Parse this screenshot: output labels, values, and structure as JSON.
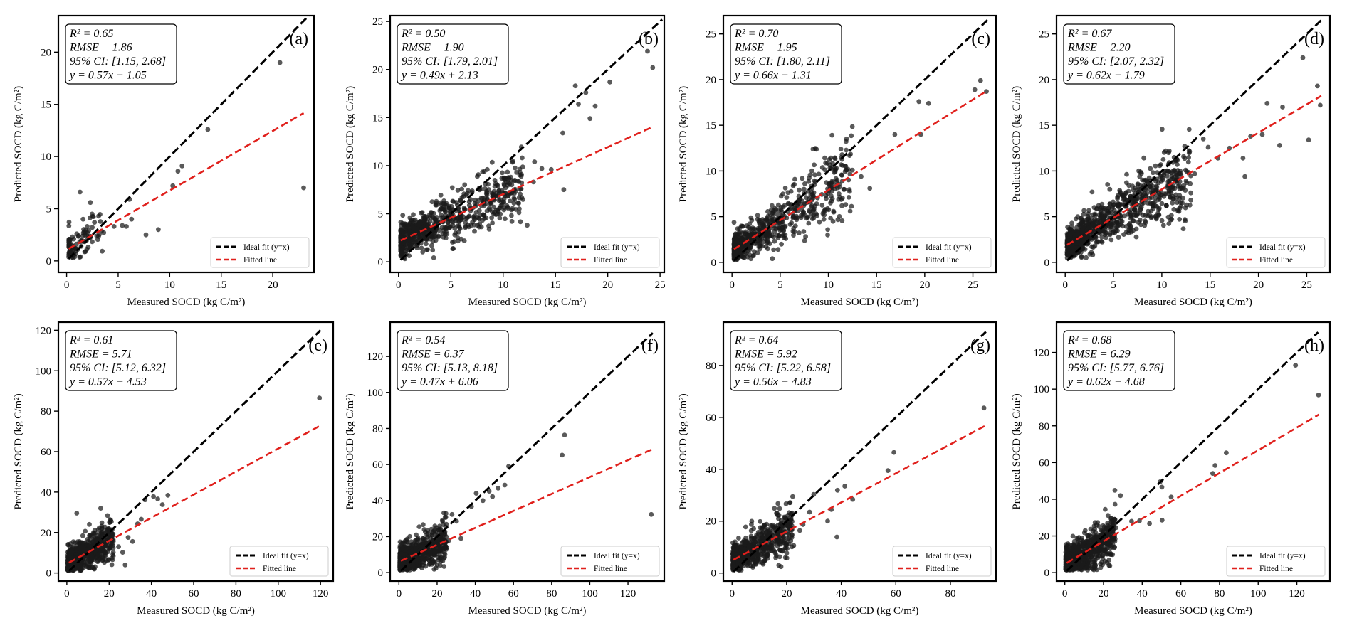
{
  "figure": {
    "colors": {
      "ideal": "#000000",
      "fitted": "#e0201c",
      "points": "#1a1a1a"
    }
  },
  "chart_data": [
    {
      "type": "scatter",
      "label": "(a)",
      "xlabel": "Measured SOCD (kg C/m²)",
      "ylabel": "Predicted SOCD (kg C/m²)",
      "xlim": [
        -0.8,
        24
      ],
      "ylim": [
        -1.1,
        23.5
      ],
      "xticks": [
        0,
        5,
        10,
        15,
        20
      ],
      "yticks": [
        0,
        5,
        10,
        15,
        20
      ],
      "stats": [
        "R² = 0.65",
        "RMSE = 1.86",
        "95% CI: [1.15, 2.68]",
        "y = 0.57x + 1.05"
      ],
      "fit": {
        "slope": 0.57,
        "intercept": 1.05,
        "x_range": [
          0.2,
          23
        ]
      },
      "ideal": {
        "x_range": [
          0.2,
          23.5
        ]
      },
      "legend": {
        "position": "bottom-right",
        "entries": [
          "Ideal fit (y=x)",
          "Fitted line"
        ]
      },
      "points": [
        [
          20.7,
          19.0
        ],
        [
          23,
          7.0
        ],
        [
          13.7,
          12.6
        ],
        [
          11.2,
          9.1
        ],
        [
          10.8,
          8.6
        ],
        [
          10.3,
          7.2
        ],
        [
          8.9,
          3.0
        ],
        [
          7.7,
          2.5
        ],
        [
          6.1,
          5.9
        ],
        [
          6.3,
          4.0
        ],
        [
          5.8,
          3.3
        ],
        [
          5.4,
          3.4
        ],
        [
          4.6,
          3.3
        ],
        [
          1.3,
          6.6
        ],
        [
          2.3,
          5.6
        ],
        [
          1.6,
          4.0
        ],
        [
          3.1,
          4.3
        ],
        [
          2.7,
          3.7
        ],
        [
          2.0,
          3.3
        ],
        [
          3.6,
          2.7
        ]
      ],
      "cluster": {
        "n": 100,
        "x": [
          0.2,
          3.5
        ],
        "seed": 11
      }
    },
    {
      "type": "scatter",
      "label": "(b)",
      "xlabel": "Measured SOCD (kg C/m²)",
      "ylabel": "Predicted SOCD (kg C/m²)",
      "xlim": [
        -0.8,
        25.4
      ],
      "ylim": [
        -1.1,
        25.6
      ],
      "xticks": [
        0,
        5,
        10,
        15,
        20,
        25
      ],
      "yticks": [
        0,
        5,
        10,
        15,
        20,
        25
      ],
      "stats": [
        "R² = 0.50",
        "RMSE = 1.90",
        "95% CI: [1.79, 2.01]",
        "y = 0.49x + 2.13"
      ],
      "fit": {
        "slope": 0.49,
        "intercept": 2.13,
        "x_range": [
          0.2,
          24.3
        ]
      },
      "ideal": {
        "x_range": [
          0.2,
          25.2
        ]
      },
      "legend": {
        "position": "bottom-right",
        "entries": [
          "Ideal fit (y=x)",
          "Fitted line"
        ]
      },
      "points": [
        [
          23.8,
          21.9
        ],
        [
          24.3,
          20.2
        ],
        [
          20.2,
          18.7
        ],
        [
          18.8,
          16.2
        ],
        [
          18.3,
          14.9
        ],
        [
          17.9,
          17.6
        ],
        [
          17.2,
          16.4
        ],
        [
          16.9,
          18.3
        ],
        [
          15.7,
          13.4
        ],
        [
          15.8,
          7.5
        ],
        [
          14.6,
          9.6
        ],
        [
          13.7,
          9.7
        ],
        [
          13.0,
          10.4
        ],
        [
          12.9,
          8.3
        ],
        [
          12.3,
          3.8
        ],
        [
          11.6,
          9.3
        ],
        [
          10.8,
          5.4
        ],
        [
          9.6,
          6.4
        ]
      ],
      "cluster": {
        "n": 700,
        "x": [
          0.2,
          12
        ],
        "seed": 22
      }
    },
    {
      "type": "scatter",
      "label": "(c)",
      "xlabel": "Measured SOCD (kg C/m²)",
      "ylabel": "Predicted SOCD (kg C/m²)",
      "xlim": [
        -0.9,
        27.4
      ],
      "ylim": [
        -1.1,
        27.0
      ],
      "xticks": [
        0,
        5,
        10,
        15,
        20,
        25
      ],
      "yticks": [
        0,
        5,
        10,
        15,
        20,
        25
      ],
      "stats": [
        "R² = 0.70",
        "RMSE = 1.95",
        "95% CI: [1.80, 2.11]",
        "y = 0.66x + 1.31"
      ],
      "fit": {
        "slope": 0.66,
        "intercept": 1.31,
        "x_range": [
          0.2,
          26.5
        ]
      },
      "ideal": {
        "x_range": [
          0.2,
          26.6
        ]
      },
      "legend": {
        "position": "bottom-right",
        "entries": [
          "Ideal fit (y=x)",
          "Fitted line"
        ]
      },
      "points": [
        [
          25.8,
          19.9
        ],
        [
          26.4,
          18.7
        ],
        [
          25.2,
          18.9
        ],
        [
          20.4,
          17.4
        ],
        [
          19.4,
          17.6
        ],
        [
          19.6,
          14.0
        ],
        [
          16.9,
          14.0
        ],
        [
          14.3,
          8.1
        ],
        [
          13.4,
          9.4
        ],
        [
          12.2,
          11.7
        ],
        [
          11.3,
          12.4
        ],
        [
          8.4,
          12.4
        ]
      ],
      "cluster": {
        "n": 600,
        "x": [
          0.2,
          12.5
        ],
        "seed": 33
      }
    },
    {
      "type": "scatter",
      "label": "(d)",
      "xlabel": "Measured SOCD (kg C/m²)",
      "ylabel": "Predicted SOCD (kg C/m²)",
      "xlim": [
        -0.9,
        27.4
      ],
      "ylim": [
        -1.1,
        27.0
      ],
      "xticks": [
        0,
        5,
        10,
        15,
        20,
        25
      ],
      "yticks": [
        0,
        5,
        10,
        15,
        20,
        25
      ],
      "stats": [
        "R² = 0.67",
        "RMSE = 2.20",
        "95% CI: [2.07, 2.32]",
        "y = 0.62x + 1.79"
      ],
      "fit": {
        "slope": 0.62,
        "intercept": 1.79,
        "x_range": [
          0.2,
          26.5
        ]
      },
      "ideal": {
        "x_range": [
          0.2,
          26.6
        ]
      },
      "legend": {
        "position": "bottom-right",
        "entries": [
          "Ideal fit (y=x)",
          "Fitted line"
        ]
      },
      "points": [
        [
          24.6,
          22.4
        ],
        [
          26.1,
          19.3
        ],
        [
          26.4,
          17.2
        ],
        [
          25.2,
          13.4
        ],
        [
          22.5,
          17.0
        ],
        [
          22.2,
          12.8
        ],
        [
          20.9,
          17.4
        ],
        [
          20.4,
          14.0
        ],
        [
          19.2,
          13.8
        ],
        [
          18.4,
          11.4
        ],
        [
          18.6,
          9.4
        ],
        [
          17.0,
          12.5
        ],
        [
          15.8,
          11.4
        ],
        [
          14.8,
          12.6
        ],
        [
          14.3,
          13.5
        ],
        [
          13.4,
          9.7
        ],
        [
          13.0,
          7.6
        ]
      ],
      "cluster": {
        "n": 900,
        "x": [
          0.2,
          13
        ],
        "seed": 44
      }
    },
    {
      "type": "scatter",
      "label": "(e)",
      "xlabel": "Measured SOCD (kg C/m²)",
      "ylabel": "Predicted SOCD (kg C/m²)",
      "xlim": [
        -4,
        126
      ],
      "ylim": [
        -4,
        124
      ],
      "xticks": [
        0,
        20,
        40,
        60,
        80,
        100,
        120
      ],
      "yticks": [
        0,
        20,
        40,
        60,
        80,
        100,
        120
      ],
      "stats": [
        "R² = 0.61",
        "RMSE = 5.71",
        "95% CI: [5.12, 6.32]",
        "y = 0.57x + 4.53"
      ],
      "fit": {
        "slope": 0.57,
        "intercept": 4.53,
        "x_range": [
          1,
          120
        ]
      },
      "ideal": {
        "x_range": [
          1,
          120
        ]
      },
      "legend": {
        "position": "bottom-right",
        "entries": [
          "Ideal fit (y=x)",
          "Fitted line"
        ]
      },
      "points": [
        [
          119.5,
          86.5
        ],
        [
          47.8,
          38.4
        ],
        [
          45.2,
          33.8
        ],
        [
          43.0,
          36.6
        ],
        [
          41.0,
          37.8
        ],
        [
          37.0,
          36.2
        ],
        [
          35.2,
          26.6
        ],
        [
          33.5,
          24.3
        ],
        [
          31.1,
          15.6
        ],
        [
          29.0,
          17.6
        ],
        [
          27.6,
          4.0
        ],
        [
          26.4,
          10.2
        ],
        [
          16.0,
          32.0
        ],
        [
          4.7,
          29.6
        ],
        [
          24.5,
          13.0
        ],
        [
          21.8,
          9.1
        ]
      ],
      "cluster": {
        "n": 600,
        "x": [
          0.5,
          22
        ],
        "seed": 55
      }
    },
    {
      "type": "scatter",
      "label": "(f)",
      "xlabel": "Measured SOCD (kg C/m²)",
      "ylabel": "Predicted SOCD (kg C/m²)",
      "xlim": [
        -4.6,
        139
      ],
      "ylim": [
        -4.7,
        139
      ],
      "xticks": [
        0,
        20,
        40,
        60,
        80,
        100,
        120
      ],
      "yticks": [
        0,
        20,
        40,
        60,
        80,
        100,
        120
      ],
      "stats": [
        "R² = 0.54",
        "RMSE = 6.37",
        "95% CI: [5.13, 8.18]",
        "y = 0.47x + 6.06"
      ],
      "fit": {
        "slope": 0.47,
        "intercept": 6.06,
        "x_range": [
          1,
          133
        ]
      },
      "ideal": {
        "x_range": [
          1,
          133
        ]
      },
      "legend": {
        "position": "bottom-right",
        "entries": [
          "Ideal fit (y=x)",
          "Fitted line"
        ]
      },
      "points": [
        [
          132.2,
          32.3
        ],
        [
          86.8,
          76.4
        ],
        [
          85.5,
          65.2
        ],
        [
          57.5,
          59.0
        ],
        [
          55.5,
          48.6
        ],
        [
          52.0,
          46.9
        ],
        [
          49.0,
          42.2
        ],
        [
          47.3,
          45.2
        ],
        [
          44.0,
          40.0
        ],
        [
          40.5,
          44.0
        ],
        [
          38.0,
          36.7
        ],
        [
          32.5,
          19.0
        ],
        [
          30.2,
          28.5
        ],
        [
          27.8,
          32.3
        ],
        [
          26.0,
          17.7
        ],
        [
          21.3,
          22.8
        ]
      ],
      "cluster": {
        "n": 700,
        "x": [
          0.5,
          25
        ],
        "seed": 66
      }
    },
    {
      "type": "scatter",
      "label": "(g)",
      "xlabel": "Measured SOCD (kg C/m²)",
      "ylabel": "Predicted SOCD (kg C/m²)",
      "xlim": [
        -3.2,
        96.7
      ],
      "ylim": [
        -3.1,
        96.7
      ],
      "xticks": [
        0,
        20,
        40,
        60,
        80
      ],
      "yticks": [
        0,
        20,
        40,
        60,
        80
      ],
      "stats": [
        "R² = 0.64",
        "RMSE = 5.92",
        "95% CI: [5.22, 6.58]",
        "y = 0.56x + 4.83"
      ],
      "fit": {
        "slope": 0.56,
        "intercept": 4.83,
        "x_range": [
          0.5,
          92.5
        ]
      },
      "ideal": {
        "x_range": [
          0.5,
          93
        ]
      },
      "legend": {
        "position": "bottom-right",
        "entries": [
          "Ideal fit (y=x)",
          "Fitted line"
        ]
      },
      "points": [
        [
          92.3,
          63.6
        ],
        [
          59.3,
          46.5
        ],
        [
          57.1,
          39.5
        ],
        [
          44.2,
          28.4
        ],
        [
          41.3,
          33.5
        ],
        [
          38.6,
          31.9
        ],
        [
          38.4,
          13.9
        ],
        [
          36.4,
          24.5
        ],
        [
          35.0,
          20.0
        ],
        [
          29.9,
          30.3
        ],
        [
          28.4,
          23.5
        ],
        [
          26.0,
          18.7
        ],
        [
          24.8,
          16.4
        ],
        [
          22.2,
          29.5
        ],
        [
          22.6,
          10.6
        ]
      ],
      "cluster": {
        "n": 650,
        "x": [
          0.3,
          22
        ],
        "seed": 77
      }
    },
    {
      "type": "scatter",
      "label": "(h)",
      "xlabel": "Measured SOCD (kg C/m²)",
      "ylabel": "Predicted SOCD (kg C/m²)",
      "xlim": [
        -4.3,
        137.1
      ],
      "ylim": [
        -4.6,
        136.5
      ],
      "xticks": [
        0,
        20,
        40,
        60,
        80,
        100,
        120
      ],
      "yticks": [
        0,
        20,
        40,
        60,
        80,
        100,
        120
      ],
      "stats": [
        "R² = 0.68",
        "RMSE = 6.29",
        "95% CI: [5.77, 6.76]",
        "y = 0.62x + 4.68"
      ],
      "fit": {
        "slope": 0.62,
        "intercept": 4.68,
        "x_range": [
          1,
          131.5
        ]
      },
      "ideal": {
        "x_range": [
          1,
          131
        ]
      },
      "legend": {
        "position": "bottom-right",
        "entries": [
          "Ideal fit (y=x)",
          "Fitted line"
        ]
      },
      "points": [
        [
          119.3,
          113.0
        ],
        [
          131.2,
          96.8
        ],
        [
          83.5,
          65.3
        ],
        [
          77.7,
          58.4
        ],
        [
          76.5,
          54.1
        ],
        [
          55.0,
          41.2
        ],
        [
          50.2,
          46.6
        ],
        [
          50.3,
          28.6
        ],
        [
          49.3,
          49.5
        ],
        [
          43.8,
          26.8
        ],
        [
          38.6,
          28.2
        ],
        [
          34.5,
          28.0
        ],
        [
          28.8,
          42.0
        ],
        [
          26.5,
          24.5
        ],
        [
          24.3,
          19.6
        ]
      ],
      "cluster": {
        "n": 750,
        "x": [
          0.5,
          26
        ],
        "seed": 88
      }
    }
  ]
}
